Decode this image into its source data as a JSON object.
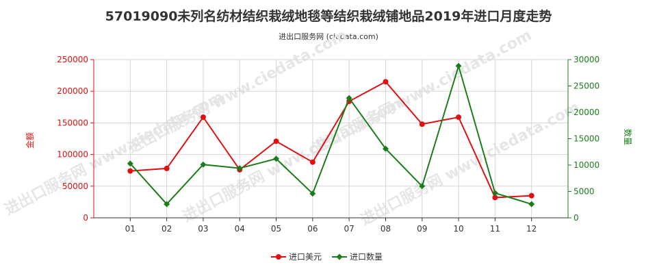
{
  "chart_data": {
    "type": "line",
    "title": "57019090未列名纺材结织栽绒地毯等结织栽绒铺地品2019年进口月度走势",
    "subtitle": "进出口服务网 (ciedata.com)",
    "categories": [
      "01",
      "02",
      "03",
      "04",
      "05",
      "06",
      "07",
      "08",
      "09",
      "10",
      "11",
      "12"
    ],
    "y_left": {
      "label": "金额",
      "ylim": [
        0,
        250000
      ],
      "ticks": [
        "0",
        "50000",
        "100000",
        "150000",
        "200000",
        "250000"
      ]
    },
    "y_right": {
      "label": "数量",
      "ylim": [
        0,
        30000
      ],
      "ticks": [
        "0",
        "5000",
        "10000",
        "15000",
        "20000",
        "25000",
        "30000"
      ]
    },
    "series": [
      {
        "name": "进口美元",
        "axis": "left",
        "color": "#e01010",
        "values": [
          74000,
          78000,
          159000,
          76000,
          121000,
          88000,
          184000,
          215000,
          148000,
          159000,
          32000,
          35000
        ]
      },
      {
        "name": "进口数量",
        "axis": "right",
        "color": "#1a7d1a",
        "values": [
          10300,
          2600,
          10100,
          9400,
          11200,
          4600,
          22700,
          13100,
          6000,
          28800,
          4700,
          2600
        ]
      }
    ],
    "grid": true,
    "legend": "bottom-center",
    "watermark": "进出口服务网 www.ciedata.com"
  }
}
